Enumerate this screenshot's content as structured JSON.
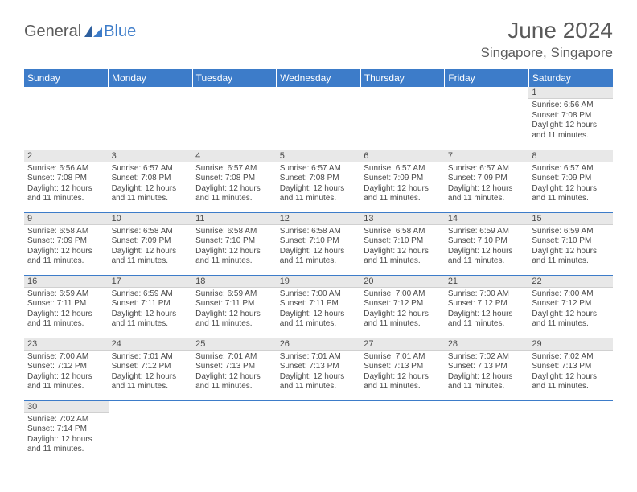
{
  "logo": {
    "general": "General",
    "blue": "Blue"
  },
  "title": "June 2024",
  "location": "Singapore, Singapore",
  "colors": {
    "header_bg": "#3d7cc9",
    "header_text": "#ffffff",
    "daynum_bg": "#e8e8e8",
    "row_divider": "#3d7cc9",
    "body_text": "#4a4a4a",
    "title_text": "#5a5a5a"
  },
  "weekdays": [
    "Sunday",
    "Monday",
    "Tuesday",
    "Wednesday",
    "Thursday",
    "Friday",
    "Saturday"
  ],
  "labels": {
    "sunrise": "Sunrise:",
    "sunset": "Sunset:",
    "daylight_prefix": "Daylight:",
    "daylight_suffix_line1": "hours",
    "daylight_suffix_line2_prefix": "and",
    "daylight_suffix_line2_suffix": "minutes."
  },
  "daylight_hours": 12,
  "daylight_minutes": 11,
  "days": [
    {
      "n": 1,
      "sunrise": "6:56 AM",
      "sunset": "7:08 PM"
    },
    {
      "n": 2,
      "sunrise": "6:56 AM",
      "sunset": "7:08 PM"
    },
    {
      "n": 3,
      "sunrise": "6:57 AM",
      "sunset": "7:08 PM"
    },
    {
      "n": 4,
      "sunrise": "6:57 AM",
      "sunset": "7:08 PM"
    },
    {
      "n": 5,
      "sunrise": "6:57 AM",
      "sunset": "7:08 PM"
    },
    {
      "n": 6,
      "sunrise": "6:57 AM",
      "sunset": "7:09 PM"
    },
    {
      "n": 7,
      "sunrise": "6:57 AM",
      "sunset": "7:09 PM"
    },
    {
      "n": 8,
      "sunrise": "6:57 AM",
      "sunset": "7:09 PM"
    },
    {
      "n": 9,
      "sunrise": "6:58 AM",
      "sunset": "7:09 PM"
    },
    {
      "n": 10,
      "sunrise": "6:58 AM",
      "sunset": "7:09 PM"
    },
    {
      "n": 11,
      "sunrise": "6:58 AM",
      "sunset": "7:10 PM"
    },
    {
      "n": 12,
      "sunrise": "6:58 AM",
      "sunset": "7:10 PM"
    },
    {
      "n": 13,
      "sunrise": "6:58 AM",
      "sunset": "7:10 PM"
    },
    {
      "n": 14,
      "sunrise": "6:59 AM",
      "sunset": "7:10 PM"
    },
    {
      "n": 15,
      "sunrise": "6:59 AM",
      "sunset": "7:10 PM"
    },
    {
      "n": 16,
      "sunrise": "6:59 AM",
      "sunset": "7:11 PM"
    },
    {
      "n": 17,
      "sunrise": "6:59 AM",
      "sunset": "7:11 PM"
    },
    {
      "n": 18,
      "sunrise": "6:59 AM",
      "sunset": "7:11 PM"
    },
    {
      "n": 19,
      "sunrise": "7:00 AM",
      "sunset": "7:11 PM"
    },
    {
      "n": 20,
      "sunrise": "7:00 AM",
      "sunset": "7:12 PM"
    },
    {
      "n": 21,
      "sunrise": "7:00 AM",
      "sunset": "7:12 PM"
    },
    {
      "n": 22,
      "sunrise": "7:00 AM",
      "sunset": "7:12 PM"
    },
    {
      "n": 23,
      "sunrise": "7:00 AM",
      "sunset": "7:12 PM"
    },
    {
      "n": 24,
      "sunrise": "7:01 AM",
      "sunset": "7:12 PM"
    },
    {
      "n": 25,
      "sunrise": "7:01 AM",
      "sunset": "7:13 PM"
    },
    {
      "n": 26,
      "sunrise": "7:01 AM",
      "sunset": "7:13 PM"
    },
    {
      "n": 27,
      "sunrise": "7:01 AM",
      "sunset": "7:13 PM"
    },
    {
      "n": 28,
      "sunrise": "7:02 AM",
      "sunset": "7:13 PM"
    },
    {
      "n": 29,
      "sunrise": "7:02 AM",
      "sunset": "7:13 PM"
    },
    {
      "n": 30,
      "sunrise": "7:02 AM",
      "sunset": "7:14 PM"
    }
  ],
  "first_weekday_index": 6
}
